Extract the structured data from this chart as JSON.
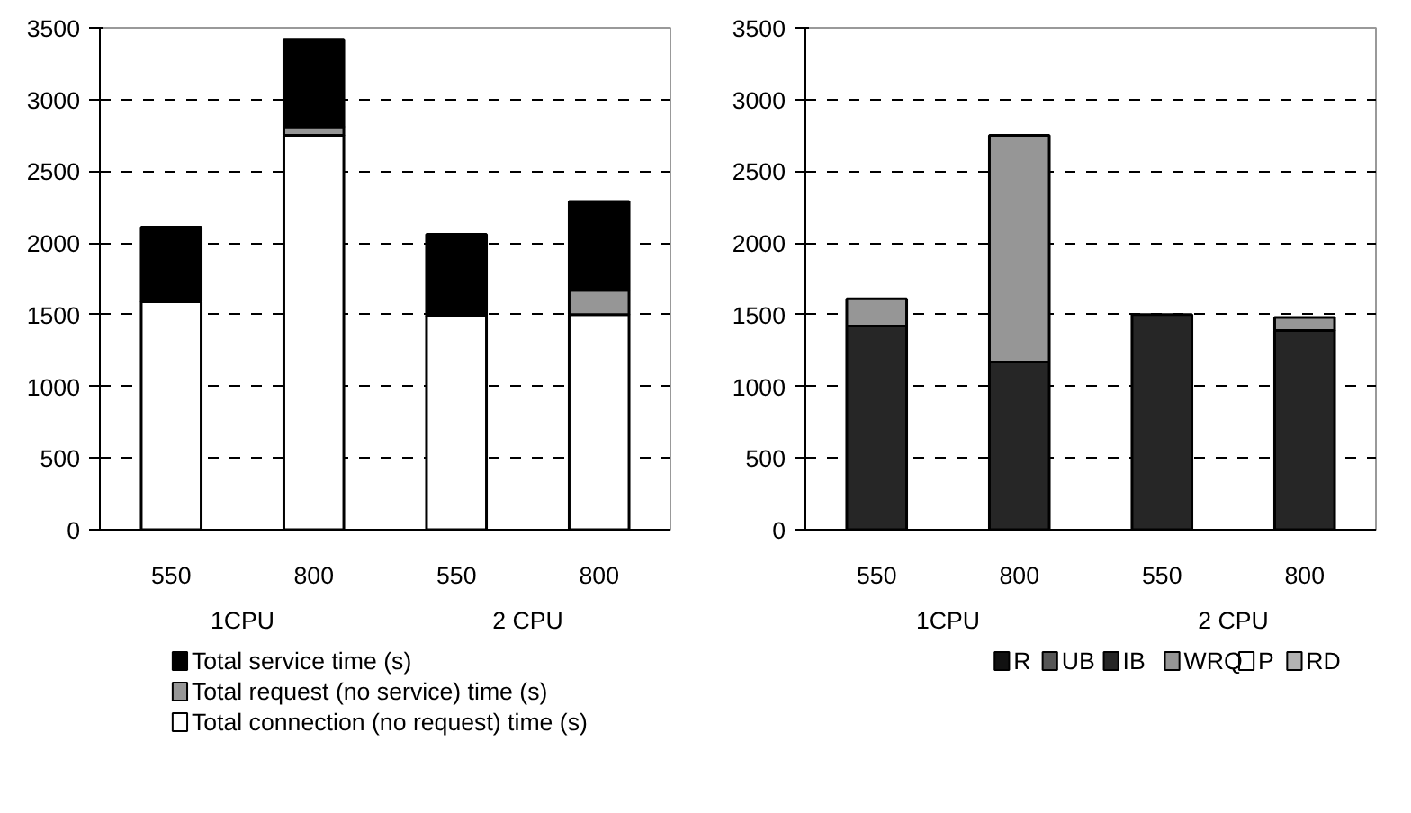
{
  "chart_data": [
    {
      "type": "bar",
      "stacked": true,
      "categories": [
        "550",
        "800",
        "550",
        "800"
      ],
      "annotations": [
        "1CPU",
        "2 CPU"
      ],
      "ylim": [
        0,
        3500
      ],
      "yticks": [
        0,
        500,
        1000,
        1500,
        2000,
        2500,
        3000,
        3500
      ],
      "grid": "y",
      "legend": "bottom",
      "series": [
        {
          "name": "Total connection (no request) time (s)",
          "color": "#ffffff",
          "values": [
            1590,
            2750,
            1490,
            1500
          ]
        },
        {
          "name": "Total request (no service) time (s)",
          "color": "#969696",
          "values": [
            0,
            60,
            0,
            170
          ]
        },
        {
          "name": "Total service time (s)",
          "color": "#000000",
          "values": [
            520,
            610,
            570,
            620
          ]
        }
      ]
    },
    {
      "type": "bar",
      "stacked": true,
      "categories": [
        "550",
        "800",
        "550",
        "800"
      ],
      "annotations": [
        "1CPU",
        "2 CPU"
      ],
      "ylim": [
        0,
        3500
      ],
      "yticks": [
        0,
        500,
        1000,
        1500,
        2000,
        2500,
        3000,
        3500
      ],
      "grid": "y",
      "legend": "bottom",
      "series": [
        {
          "name": "R",
          "color": "#111111",
          "values": [
            null,
            null,
            null,
            null
          ]
        },
        {
          "name": "UB",
          "color": "#555555",
          "values": [
            0,
            0,
            0,
            0
          ]
        },
        {
          "name": "IB",
          "color": "#262626",
          "values": [
            1420,
            1170,
            1500,
            1390
          ]
        },
        {
          "name": "WRQ",
          "color": "#969696",
          "values": [
            190,
            1580,
            0,
            90
          ]
        },
        {
          "name": "P",
          "color": "#ffffff",
          "values": [
            0,
            0,
            0,
            0
          ]
        },
        {
          "name": "RD",
          "color": "#b2b2b2",
          "values": [
            0,
            0,
            0,
            0
          ]
        }
      ]
    }
  ]
}
